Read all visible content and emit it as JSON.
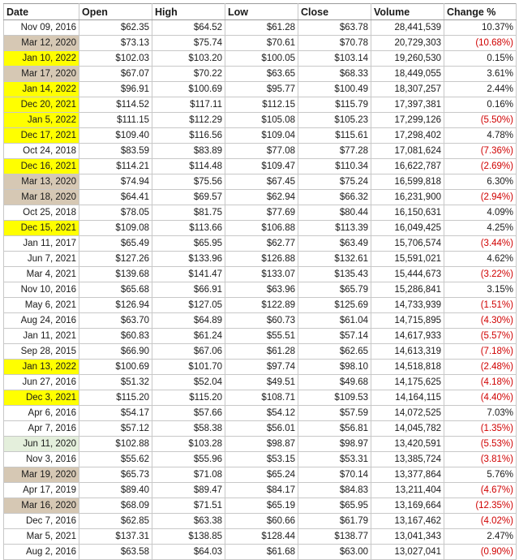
{
  "headers": [
    "Date",
    "Open",
    "High",
    "Low",
    "Close",
    "Volume",
    "Change %"
  ],
  "highlight_colors": {
    "yellow": "#ffff00",
    "tan": "#d6c8b4",
    "green": "#e4efdc",
    "negative_text": "#d00000"
  },
  "rows": [
    {
      "date": "Nov 09, 2016",
      "open": "$62.35",
      "high": "$64.52",
      "low": "$61.28",
      "close": "$63.78",
      "volume": "28,441,539",
      "change": "10.37%",
      "neg": false,
      "hl": ""
    },
    {
      "date": "Mar 12, 2020",
      "open": "$73.13",
      "high": "$75.74",
      "low": "$70.61",
      "close": "$70.78",
      "volume": "20,729,303",
      "change": "(10.68%)",
      "neg": true,
      "hl": "tan"
    },
    {
      "date": "Jan 10, 2022",
      "open": "$102.03",
      "high": "$103.20",
      "low": "$100.05",
      "close": "$103.14",
      "volume": "19,260,530",
      "change": "0.15%",
      "neg": false,
      "hl": "yellow"
    },
    {
      "date": "Mar 17, 2020",
      "open": "$67.07",
      "high": "$70.22",
      "low": "$63.65",
      "close": "$68.33",
      "volume": "18,449,055",
      "change": "3.61%",
      "neg": false,
      "hl": "tan"
    },
    {
      "date": "Jan 14, 2022",
      "open": "$96.91",
      "high": "$100.69",
      "low": "$95.77",
      "close": "$100.49",
      "volume": "18,307,257",
      "change": "2.44%",
      "neg": false,
      "hl": "yellow"
    },
    {
      "date": "Dec 20, 2021",
      "open": "$114.52",
      "high": "$117.11",
      "low": "$112.15",
      "close": "$115.79",
      "volume": "17,397,381",
      "change": "0.16%",
      "neg": false,
      "hl": "yellow"
    },
    {
      "date": "Jan 5, 2022",
      "open": "$111.15",
      "high": "$112.29",
      "low": "$105.08",
      "close": "$105.23",
      "volume": "17,299,126",
      "change": "(5.50%)",
      "neg": true,
      "hl": "yellow"
    },
    {
      "date": "Dec 17, 2021",
      "open": "$109.40",
      "high": "$116.56",
      "low": "$109.04",
      "close": "$115.61",
      "volume": "17,298,402",
      "change": "4.78%",
      "neg": false,
      "hl": "yellow"
    },
    {
      "date": "Oct 24, 2018",
      "open": "$83.59",
      "high": "$83.89",
      "low": "$77.08",
      "close": "$77.28",
      "volume": "17,081,624",
      "change": "(7.36%)",
      "neg": true,
      "hl": ""
    },
    {
      "date": "Dec 16, 2021",
      "open": "$114.21",
      "high": "$114.48",
      "low": "$109.47",
      "close": "$110.34",
      "volume": "16,622,787",
      "change": "(2.69%)",
      "neg": true,
      "hl": "yellow"
    },
    {
      "date": "Mar 13, 2020",
      "open": "$74.94",
      "high": "$75.56",
      "low": "$67.45",
      "close": "$75.24",
      "volume": "16,599,818",
      "change": "6.30%",
      "neg": false,
      "hl": "tan"
    },
    {
      "date": "Mar 18, 2020",
      "open": "$64.41",
      "high": "$69.57",
      "low": "$62.94",
      "close": "$66.32",
      "volume": "16,231,900",
      "change": "(2.94%)",
      "neg": true,
      "hl": "tan"
    },
    {
      "date": "Oct 25, 2018",
      "open": "$78.05",
      "high": "$81.75",
      "low": "$77.69",
      "close": "$80.44",
      "volume": "16,150,631",
      "change": "4.09%",
      "neg": false,
      "hl": ""
    },
    {
      "date": "Dec 15, 2021",
      "open": "$109.08",
      "high": "$113.66",
      "low": "$106.88",
      "close": "$113.39",
      "volume": "16,049,425",
      "change": "4.25%",
      "neg": false,
      "hl": "yellow"
    },
    {
      "date": "Jan 11, 2017",
      "open": "$65.49",
      "high": "$65.95",
      "low": "$62.77",
      "close": "$63.49",
      "volume": "15,706,574",
      "change": "(3.44%)",
      "neg": true,
      "hl": ""
    },
    {
      "date": "Jun 7, 2021",
      "open": "$127.26",
      "high": "$133.96",
      "low": "$126.88",
      "close": "$132.61",
      "volume": "15,591,021",
      "change": "4.62%",
      "neg": false,
      "hl": ""
    },
    {
      "date": "Mar 4, 2021",
      "open": "$139.68",
      "high": "$141.47",
      "low": "$133.07",
      "close": "$135.43",
      "volume": "15,444,673",
      "change": "(3.22%)",
      "neg": true,
      "hl": ""
    },
    {
      "date": "Nov 10, 2016",
      "open": "$65.68",
      "high": "$66.91",
      "low": "$63.96",
      "close": "$65.79",
      "volume": "15,286,841",
      "change": "3.15%",
      "neg": false,
      "hl": ""
    },
    {
      "date": "May 6, 2021",
      "open": "$126.94",
      "high": "$127.05",
      "low": "$122.89",
      "close": "$125.69",
      "volume": "14,733,939",
      "change": "(1.51%)",
      "neg": true,
      "hl": ""
    },
    {
      "date": "Aug 24, 2016",
      "open": "$63.70",
      "high": "$64.89",
      "low": "$60.73",
      "close": "$61.04",
      "volume": "14,715,895",
      "change": "(4.30%)",
      "neg": true,
      "hl": ""
    },
    {
      "date": "Jan 11, 2021",
      "open": "$60.83",
      "high": "$61.24",
      "low": "$55.51",
      "close": "$57.14",
      "volume": "14,617,933",
      "change": "(5.57%)",
      "neg": true,
      "hl": ""
    },
    {
      "date": "Sep 28, 2015",
      "open": "$66.90",
      "high": "$67.06",
      "low": "$61.28",
      "close": "$62.65",
      "volume": "14,613,319",
      "change": "(7.18%)",
      "neg": true,
      "hl": ""
    },
    {
      "date": "Jan 13, 2022",
      "open": "$100.69",
      "high": "$101.70",
      "low": "$97.74",
      "close": "$98.10",
      "volume": "14,518,818",
      "change": "(2.48%)",
      "neg": true,
      "hl": "yellow"
    },
    {
      "date": "Jun 27, 2016",
      "open": "$51.32",
      "high": "$52.04",
      "low": "$49.51",
      "close": "$49.68",
      "volume": "14,175,625",
      "change": "(4.18%)",
      "neg": true,
      "hl": ""
    },
    {
      "date": "Dec 3, 2021",
      "open": "$115.20",
      "high": "$115.20",
      "low": "$108.71",
      "close": "$109.53",
      "volume": "14,164,115",
      "change": "(4.40%)",
      "neg": true,
      "hl": "yellow"
    },
    {
      "date": "Apr 6, 2016",
      "open": "$54.17",
      "high": "$57.66",
      "low": "$54.12",
      "close": "$57.59",
      "volume": "14,072,525",
      "change": "7.03%",
      "neg": false,
      "hl": ""
    },
    {
      "date": "Apr 7, 2016",
      "open": "$57.12",
      "high": "$58.38",
      "low": "$56.01",
      "close": "$56.81",
      "volume": "14,045,782",
      "change": "(1.35%)",
      "neg": true,
      "hl": ""
    },
    {
      "date": "Jun 11, 2020",
      "open": "$102.88",
      "high": "$103.28",
      "low": "$98.87",
      "close": "$98.97",
      "volume": "13,420,591",
      "change": "(5.53%)",
      "neg": true,
      "hl": "green"
    },
    {
      "date": "Nov 3, 2016",
      "open": "$55.62",
      "high": "$55.96",
      "low": "$53.15",
      "close": "$53.31",
      "volume": "13,385,724",
      "change": "(3.81%)",
      "neg": true,
      "hl": ""
    },
    {
      "date": "Mar 19, 2020",
      "open": "$65.73",
      "high": "$71.08",
      "low": "$65.24",
      "close": "$70.14",
      "volume": "13,377,864",
      "change": "5.76%",
      "neg": false,
      "hl": "tan"
    },
    {
      "date": "Apr 17, 2019",
      "open": "$89.40",
      "high": "$89.47",
      "low": "$84.17",
      "close": "$84.83",
      "volume": "13,211,404",
      "change": "(4.67%)",
      "neg": true,
      "hl": ""
    },
    {
      "date": "Mar 16, 2020",
      "open": "$68.09",
      "high": "$71.51",
      "low": "$65.19",
      "close": "$65.95",
      "volume": "13,169,664",
      "change": "(12.35%)",
      "neg": true,
      "hl": "tan"
    },
    {
      "date": "Dec 7, 2016",
      "open": "$62.85",
      "high": "$63.38",
      "low": "$60.66",
      "close": "$61.79",
      "volume": "13,167,462",
      "change": "(4.02%)",
      "neg": true,
      "hl": ""
    },
    {
      "date": "Mar 5, 2021",
      "open": "$137.31",
      "high": "$138.85",
      "low": "$128.44",
      "close": "$138.77",
      "volume": "13,041,343",
      "change": "2.47%",
      "neg": false,
      "hl": ""
    },
    {
      "date": "Aug 2, 2016",
      "open": "$63.58",
      "high": "$64.03",
      "low": "$61.68",
      "close": "$63.00",
      "volume": "13,027,041",
      "change": "(0.90%)",
      "neg": true,
      "hl": ""
    }
  ]
}
